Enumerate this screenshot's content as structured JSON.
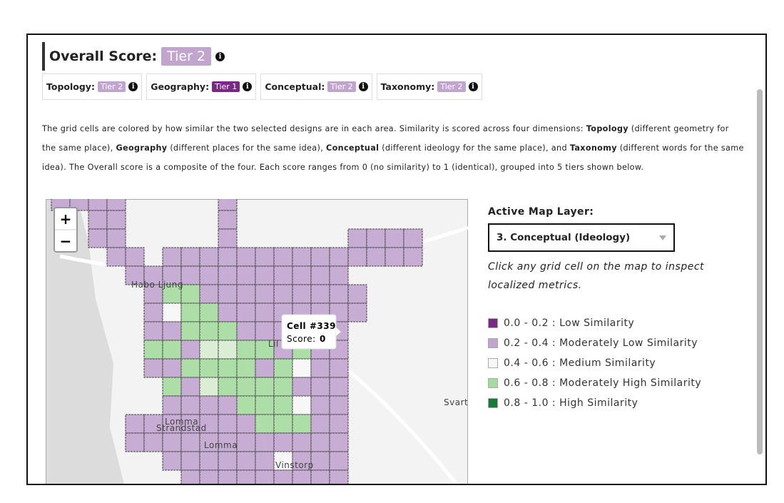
{
  "header": {
    "overall_label": "Overall Score:",
    "overall_tier": "Tier 2",
    "overall_color": "#c2a5cf"
  },
  "scores": [
    {
      "label": "Topology:",
      "tier": "Tier 2",
      "color": "#c2a5cf"
    },
    {
      "label": "Geography:",
      "tier": "Tier 1",
      "color": "#762a83"
    },
    {
      "label": "Conceptual:",
      "tier": "Tier 2",
      "color": "#c2a5cf"
    },
    {
      "label": "Taxonomy:",
      "tier": "Tier 2",
      "color": "#c2a5cf"
    }
  ],
  "description": [
    {
      "text": "The grid cells are colored by how similar the two selected designs are in each area. Similarity is scored across four dimensions: ",
      "bold": false
    },
    {
      "text": "Topology",
      "bold": true
    },
    {
      "text": " (different geometry for the same place), ",
      "bold": false
    },
    {
      "text": "Geography",
      "bold": true
    },
    {
      "text": " (different places for the same idea), ",
      "bold": false
    },
    {
      "text": "Conceptual",
      "bold": true
    },
    {
      "text": " (different ideology for the same place), and ",
      "bold": false
    },
    {
      "text": "Taxonomy",
      "bold": true
    },
    {
      "text": " (different words for the same idea). The Overall score is a composite of the four. Each score ranges from 0 (no similarity) to 1 (identical), grouped into 5 tiers shown below.",
      "bold": false
    }
  ],
  "map": {
    "zoom_in": "+",
    "zoom_out": "−",
    "places": [
      "Habo Ljung",
      "Lil",
      "Lomma",
      "Strandstad",
      "Lomma",
      "Vinstorp",
      "Svart"
    ],
    "tooltip": {
      "title": "Cell #339",
      "score_label": "Score:",
      "score": 0
    }
  },
  "panel": {
    "layer_label": "Active Map Layer:",
    "selected": "3. Conceptual (Ideology)",
    "hint": "Click any grid cell on the map to inspect localized metrics."
  },
  "legend": [
    {
      "text": "0.0 - 0.2 : Low Similarity",
      "color": "#762a83"
    },
    {
      "text": "0.2 - 0.4 : Moderately Low Similarity",
      "color": "#c2a5cf"
    },
    {
      "text": "0.4 - 0.6 : Medium Similarity",
      "color": "#f7f7f7"
    },
    {
      "text": "0.6 - 0.8 : Moderately High Similarity",
      "color": "#a6dba0"
    },
    {
      "text": "0.8 - 1.0 : High Similarity",
      "color": "#1b7837"
    }
  ]
}
